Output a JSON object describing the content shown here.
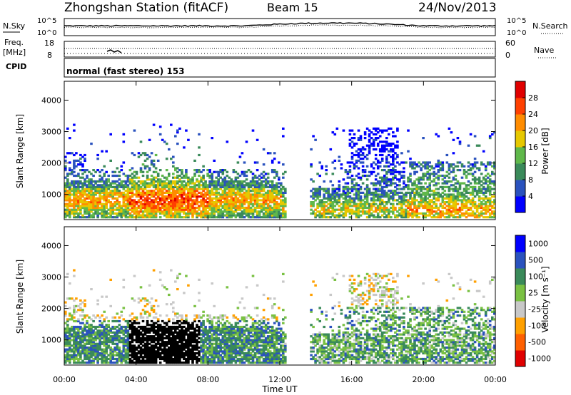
{
  "header": {
    "station": "Zhongshan Station (fitACF)",
    "beam": "Beam 15",
    "date": "24/Nov/2013"
  },
  "noise_panel": {
    "left_label": "N.Sky",
    "right_label": "N.Search",
    "left_ticks": [
      "10^5",
      "10^0"
    ],
    "right_ticks": [
      "10^5",
      "10^0"
    ]
  },
  "freq_panel": {
    "left_label_1": "Freq.",
    "left_label_2": "[MHz]",
    "right_label": "Nave",
    "left_ticks": [
      "18",
      "8"
    ],
    "right_ticks": [
      "60",
      "0"
    ]
  },
  "cpid": {
    "label": "CPID",
    "mode": "normal (fast stereo) 153"
  },
  "colors": {
    "power": [
      "#0000ff",
      "#2a52be",
      "#3a8a5a",
      "#5fb84a",
      "#e6c800",
      "#ff8c00",
      "#ff4000",
      "#e00000"
    ],
    "velocity": [
      "#e00000",
      "#ff6000",
      "#ffa000",
      "#c8c8c8",
      "#7ac143",
      "#3a8a5a",
      "#2a52be",
      "#0000ff"
    ]
  },
  "chart_data": [
    {
      "type": "heatmap",
      "title": "",
      "ylabel": "Slant Range [km]",
      "ylim": [
        200,
        4600
      ],
      "yticks": [
        "1000",
        "2000",
        "3000",
        "4000"
      ],
      "xlim": [
        0,
        24
      ],
      "colorbar_label": "Power [dB]",
      "colorbar_ticks": [
        "4",
        "8",
        "12",
        "16",
        "20",
        "24",
        "28"
      ],
      "colorbar_range": [
        0,
        32
      ]
    },
    {
      "type": "heatmap",
      "title": "",
      "xlabel": "Time UT",
      "ylabel": "Slant Range [km]",
      "ylim": [
        200,
        4600
      ],
      "yticks": [
        "1000",
        "2000",
        "3000",
        "4000"
      ],
      "xticks": [
        "00:00",
        "04:00",
        "08:00",
        "12:00",
        "16:00",
        "20:00",
        "00:00"
      ],
      "xlim": [
        0,
        24
      ],
      "colorbar_label": "Velocity [m s⁻¹]",
      "colorbar_ticks": [
        "1000",
        "500",
        "100",
        "25",
        "-25",
        "-100",
        "-500",
        "-1000"
      ]
    }
  ]
}
